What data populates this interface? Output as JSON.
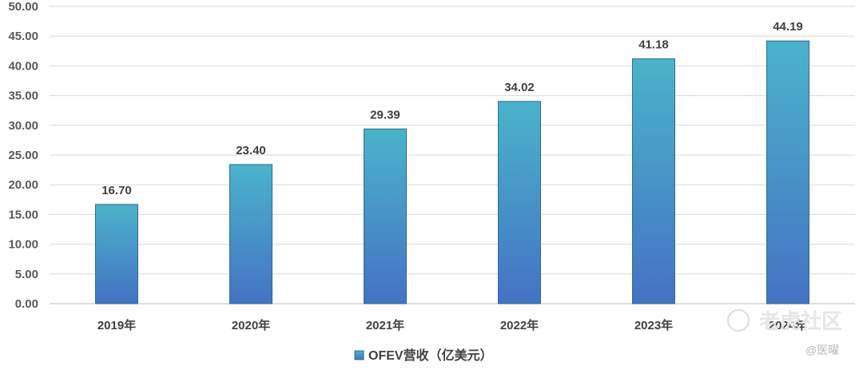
{
  "chart_data": {
    "type": "bar",
    "categories": [
      "2019年",
      "2020年",
      "2021年",
      "2022年",
      "2023年",
      "2024年"
    ],
    "series": [
      {
        "name": "OFEV营收（亿美元）",
        "values": [
          16.7,
          23.4,
          29.39,
          34.02,
          41.18,
          44.19
        ]
      }
    ],
    "data_labels": [
      "16.70",
      "23.40",
      "29.39",
      "34.02",
      "41.18",
      "44.19"
    ],
    "y_ticks": [
      "0.00",
      "5.00",
      "10.00",
      "15.00",
      "20.00",
      "25.00",
      "30.00",
      "35.00",
      "40.00",
      "45.00",
      "50.00"
    ],
    "ylim": [
      0,
      50
    ],
    "grid": true,
    "legend_position": "bottom",
    "colors": {
      "bar_top": "#4bb3cb",
      "bar_bottom": "#4472c4",
      "bar_stroke": "#2e6e84",
      "grid": "#d9d9d9"
    }
  },
  "watermark": {
    "main": "老虎社区",
    "sub": "@医曜"
  }
}
